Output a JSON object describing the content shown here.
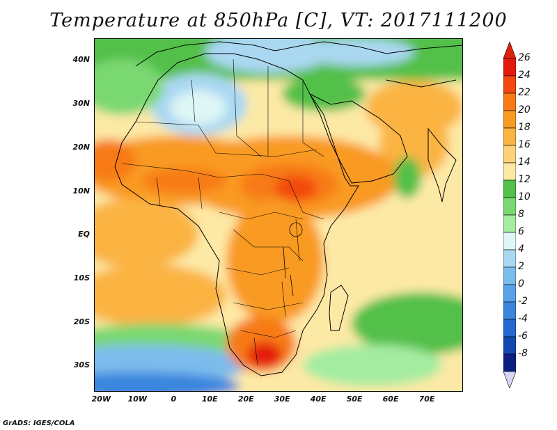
{
  "title": "Temperature at 850hPa [C], VT: 2017111200",
  "footer": "GrADS: IGES/COLA",
  "map": {
    "lat_labels": [
      "40N",
      "30N",
      "20N",
      "10N",
      "EQ",
      "10S",
      "20S",
      "30S"
    ],
    "lat_values": [
      40,
      30,
      20,
      10,
      0,
      -10,
      -20,
      -30
    ],
    "lon_labels": [
      "20W",
      "10W",
      "0",
      "10E",
      "20E",
      "30E",
      "40E",
      "50E",
      "60E",
      "70E"
    ],
    "lon_values": [
      -20,
      -10,
      0,
      10,
      20,
      30,
      40,
      50,
      60,
      70
    ],
    "lat_range": [
      -36,
      45
    ],
    "lon_range": [
      -22,
      80
    ]
  },
  "colorbar": {
    "labels": [
      "26",
      "24",
      "22",
      "20",
      "18",
      "16",
      "14",
      "12",
      "10",
      "8",
      "6",
      "4",
      "2",
      "0",
      "-2",
      "-4",
      "-6",
      "-8"
    ],
    "colors": [
      "#e31a0a",
      "#f2480f",
      "#f77a16",
      "#f99a22",
      "#fbb442",
      "#fdd27a",
      "#fde9a6",
      "#52c04a",
      "#7ad872",
      "#a4eca0",
      "#def6f6",
      "#aad8f2",
      "#7cbcec",
      "#58a2e8",
      "#3a86de",
      "#2468d0",
      "#1448b0",
      "#0c1e82"
    ],
    "top_arrow_color": "#e0210b",
    "bottom_arrow_color": "#d9d5f5"
  }
}
